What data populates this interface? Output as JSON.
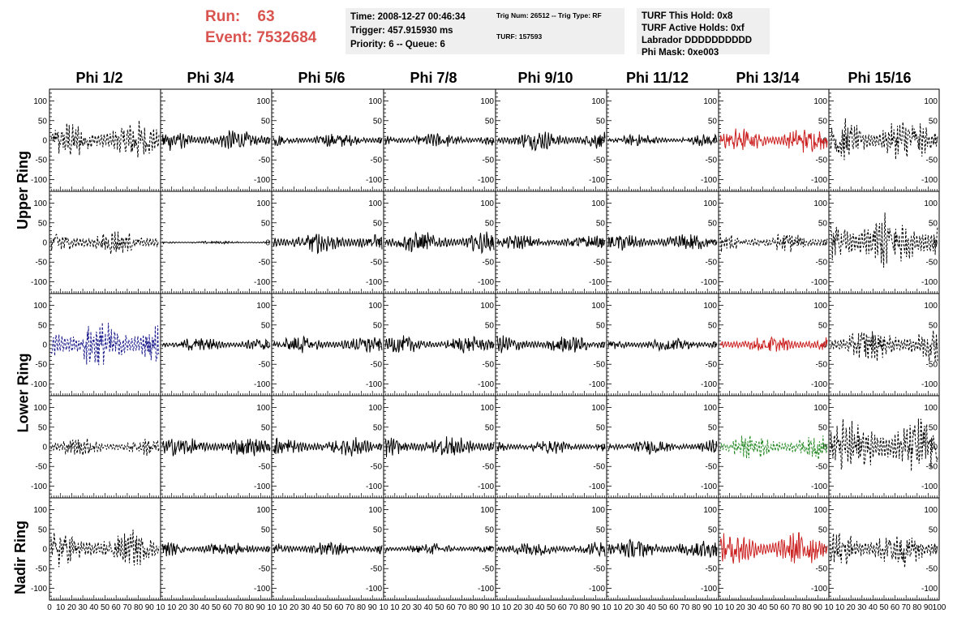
{
  "header": {
    "run_label": "Run:",
    "run_value": "63",
    "event_label": "Event:",
    "event_value": "7532684",
    "time_box": {
      "time": "Time: 2008-12-27 00:46:34",
      "trigger": "Trigger: 457.915930 ms",
      "priority": "Priority: 6 -- Queue: 6"
    },
    "trig_box": {
      "trig": "Trig Num: 26512 -- Trig Type: RF",
      "turf": "TURF: 157593"
    },
    "turf_box": {
      "this_hold": "TURF This Hold: 0x8",
      "active_holds": "TURF Active Holds: 0xf",
      "labrador": "Labrador DDDDDDDDDD",
      "phi_mask": "Phi Mask: 0xe003"
    },
    "colors": {
      "run_text": "#d9534f",
      "box_bg": "#efefef"
    }
  },
  "columns": [
    "Phi 1/2",
    "Phi 3/4",
    "Phi 5/6",
    "Phi 7/8",
    "Phi 9/10",
    "Phi 11/12",
    "Phi 13/14",
    "Phi 15/16"
  ],
  "ring_labels": {
    "upper": "Upper Ring",
    "lower": "Lower Ring",
    "nadir": "Nadir Ring"
  },
  "axes": {
    "y_ticks": [
      "100",
      "50",
      "0",
      "-50",
      "-100"
    ],
    "y_range": [
      -130,
      130
    ],
    "x_range": [
      0,
      100
    ],
    "x_ticks_first": [
      "0",
      "10",
      "20",
      "30",
      "40",
      "50",
      "60",
      "70",
      "80",
      "90",
      "10"
    ],
    "x_ticks": [
      "10",
      "20",
      "30",
      "40",
      "50",
      "60",
      "70",
      "80",
      "90",
      "10"
    ],
    "x_ticks_last": [
      "10",
      "20",
      "30",
      "40",
      "50",
      "60",
      "70",
      "80",
      "90",
      "100"
    ]
  },
  "trace_colors": {
    "normal": "#000000",
    "red": "#cc2222",
    "blue": "#1a1a8c",
    "green": "#228822"
  },
  "panels": [
    {
      "amp": 40,
      "style": "dashed",
      "color": "normal"
    },
    {
      "amp": 22,
      "style": "solid",
      "color": "normal"
    },
    {
      "amp": 15,
      "style": "solid",
      "color": "normal"
    },
    {
      "amp": 15,
      "style": "solid",
      "color": "normal"
    },
    {
      "amp": 20,
      "style": "solid",
      "color": "normal"
    },
    {
      "amp": 12,
      "style": "solid",
      "color": "normal"
    },
    {
      "amp": 25,
      "style": "solid",
      "color": "red"
    },
    {
      "amp": 45,
      "style": "dashed",
      "color": "normal"
    },
    {
      "amp": 25,
      "style": "dashed",
      "color": "normal"
    },
    {
      "amp": 3,
      "style": "solid",
      "color": "normal"
    },
    {
      "amp": 22,
      "style": "solid",
      "color": "normal"
    },
    {
      "amp": 22,
      "style": "solid",
      "color": "normal"
    },
    {
      "amp": 15,
      "style": "solid",
      "color": "normal"
    },
    {
      "amp": 18,
      "style": "solid",
      "color": "normal"
    },
    {
      "amp": 20,
      "style": "dashed",
      "color": "normal"
    },
    {
      "amp": 60,
      "style": "dashed",
      "color": "normal"
    },
    {
      "amp": 50,
      "style": "dashed",
      "color": "blue"
    },
    {
      "amp": 15,
      "style": "solid",
      "color": "normal"
    },
    {
      "amp": 18,
      "style": "solid",
      "color": "normal"
    },
    {
      "amp": 18,
      "style": "solid",
      "color": "normal"
    },
    {
      "amp": 18,
      "style": "solid",
      "color": "normal"
    },
    {
      "amp": 14,
      "style": "solid",
      "color": "normal"
    },
    {
      "amp": 18,
      "style": "solid",
      "color": "red"
    },
    {
      "amp": 35,
      "style": "dashed",
      "color": "normal"
    },
    {
      "amp": 18,
      "style": "dashed",
      "color": "normal"
    },
    {
      "amp": 20,
      "style": "solid",
      "color": "normal"
    },
    {
      "amp": 20,
      "style": "solid",
      "color": "normal"
    },
    {
      "amp": 22,
      "style": "solid",
      "color": "normal"
    },
    {
      "amp": 14,
      "style": "solid",
      "color": "normal"
    },
    {
      "amp": 15,
      "style": "solid",
      "color": "normal"
    },
    {
      "amp": 25,
      "style": "dashed",
      "color": "green"
    },
    {
      "amp": 60,
      "style": "dashed",
      "color": "normal"
    },
    {
      "amp": 38,
      "style": "dashed",
      "color": "normal"
    },
    {
      "amp": 15,
      "style": "solid",
      "color": "normal"
    },
    {
      "amp": 15,
      "style": "solid",
      "color": "normal"
    },
    {
      "amp": 12,
      "style": "solid",
      "color": "normal"
    },
    {
      "amp": 15,
      "style": "solid",
      "color": "normal"
    },
    {
      "amp": 20,
      "style": "solid",
      "color": "normal"
    },
    {
      "amp": 35,
      "style": "solid",
      "color": "red"
    },
    {
      "amp": 40,
      "style": "dashed",
      "color": "normal"
    }
  ]
}
